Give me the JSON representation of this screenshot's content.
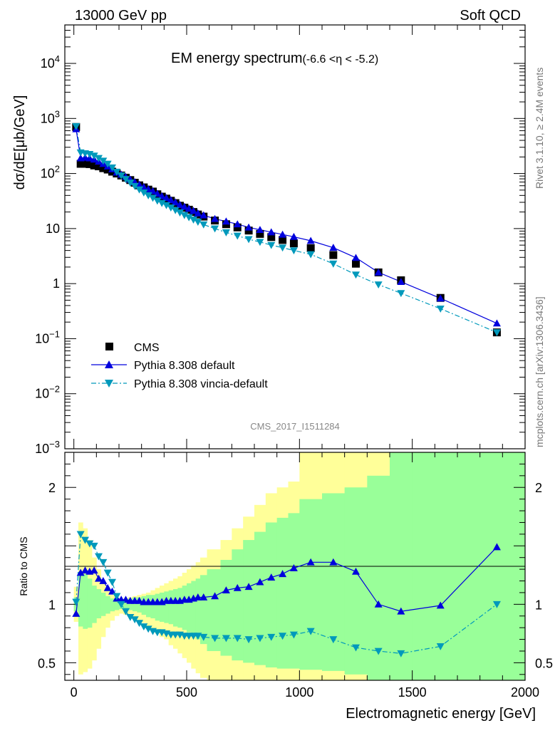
{
  "header": {
    "left": "13000 GeV pp",
    "right": "Soft QCD"
  },
  "side_text": {
    "rivet": "Rivet 3.1.10, ≥ 2.4M events",
    "mcplots": "mcplots.cern.ch [arXiv:1306.3436]"
  },
  "chart_data": {
    "type": "scatter",
    "title": "EM energy spectrum",
    "title_suffix": "(-6.6 <η < -5.2)",
    "watermark": "CMS_2017_I1511284",
    "xlabel": "Electromagnetic energy [GeV]",
    "ylabel": "dσ/dE[μb/GeV]",
    "ratio_ylabel": "Ratio to CMS",
    "xlim": [
      -40,
      2000
    ],
    "ylim": [
      0.001,
      50000
    ],
    "log_y": true,
    "ratio_ylim": [
      0.35,
      2.3
    ],
    "legend_position": "bottom-left",
    "x_ticks": [
      "0",
      "500",
      "1000",
      "1500",
      "2000"
    ],
    "y_tick_labels": [
      {
        "mant": "10",
        "exp": "4",
        "value": 10000
      },
      {
        "mant": "10",
        "exp": "3",
        "value": 1000
      },
      {
        "mant": "10",
        "exp": "2",
        "value": 100
      },
      {
        "mant": "10",
        "exp": "",
        "value": 10
      },
      {
        "mant": "1",
        "exp": "",
        "value": 1
      },
      {
        "mant": "10",
        "exp": "−1",
        "value": 0.1
      },
      {
        "mant": "10",
        "exp": "−2",
        "value": 0.01
      },
      {
        "mant": "10",
        "exp": "−3",
        "value": 0.001
      }
    ],
    "ratio_ticks": [
      {
        "label": "2",
        "value": 2
      },
      {
        "label": "1",
        "value": 1
      },
      {
        "label": "0.5",
        "value": 0.5
      }
    ],
    "x": [
      10,
      30,
      50,
      70,
      90,
      110,
      130,
      150,
      170,
      190,
      210,
      230,
      250,
      270,
      290,
      310,
      330,
      350,
      370,
      390,
      410,
      430,
      450,
      470,
      490,
      510,
      530,
      550,
      575,
      625,
      675,
      725,
      775,
      825,
      875,
      925,
      975,
      1050,
      1150,
      1250,
      1350,
      1450,
      1625,
      1875
    ],
    "series": [
      {
        "name": "CMS",
        "marker": "square",
        "color": "#000000",
        "values": [
          700,
          150,
          150,
          148,
          140,
          135,
          125,
          118,
          108,
          100,
          92,
          84,
          76,
          68,
          61,
          56,
          51,
          47,
          42,
          38,
          35,
          32,
          29,
          26,
          24,
          22,
          20,
          18,
          16.5,
          14,
          12,
          10.5,
          9.2,
          8,
          7,
          6.2,
          5.4,
          4.4,
          3.3,
          2.3,
          1.6,
          1.15,
          0.55,
          0.13
        ]
      },
      {
        "name": "Pythia 8.308 default",
        "marker": "triangle-up",
        "color": "#0000dd",
        "line": "solid",
        "values": [
          640,
          190,
          195,
          190,
          180,
          165,
          150,
          135,
          120,
          105,
          96,
          87,
          78,
          70,
          63,
          57,
          52,
          48,
          43,
          39,
          36,
          33,
          30,
          27,
          25,
          23,
          21,
          19,
          17.5,
          15,
          13.5,
          12,
          10.5,
          9.5,
          8.6,
          7.8,
          7.1,
          6,
          4.5,
          2.95,
          1.6,
          1.08,
          0.54,
          0.19
        ]
      },
      {
        "name": "Pythia 8.308 vincia-default",
        "marker": "triangle-down",
        "color": "#0099bb",
        "line": "dashdot",
        "values": [
          720,
          240,
          232,
          225,
          210,
          190,
          170,
          150,
          128,
          107,
          92,
          79,
          68,
          59,
          51,
          45,
          40,
          36,
          32,
          29,
          26.5,
          24,
          21.5,
          19.5,
          17.5,
          16,
          14.5,
          13.2,
          11.8,
          10,
          8.5,
          7.4,
          6.4,
          5.7,
          5,
          4.5,
          4,
          3.4,
          2.3,
          1.45,
          0.96,
          0.67,
          0.35,
          0.13
        ]
      }
    ],
    "ratio_series": [
      {
        "name": "Pythia 8.308 default",
        "values": [
          0.92,
          1.27,
          1.29,
          1.28,
          1.29,
          1.22,
          1.2,
          1.14,
          1.11,
          1.05,
          1.04,
          1.04,
          1.03,
          1.03,
          1.03,
          1.02,
          1.02,
          1.02,
          1.02,
          1.02,
          1.03,
          1.03,
          1.03,
          1.03,
          1.04,
          1.04,
          1.05,
          1.06,
          1.06,
          1.07,
          1.12,
          1.14,
          1.15,
          1.19,
          1.23,
          1.26,
          1.31,
          1.36,
          1.36,
          1.28,
          1.0,
          0.94,
          0.99,
          1.49
        ]
      },
      {
        "name": "Pythia 8.308 vincia-default",
        "values": [
          1.02,
          1.6,
          1.55,
          1.52,
          1.5,
          1.41,
          1.36,
          1.27,
          1.19,
          1.07,
          1.0,
          0.94,
          0.89,
          0.87,
          0.84,
          0.81,
          0.79,
          0.77,
          0.76,
          0.76,
          0.75,
          0.74,
          0.74,
          0.74,
          0.73,
          0.73,
          0.73,
          0.73,
          0.72,
          0.71,
          0.71,
          0.71,
          0.7,
          0.71,
          0.72,
          0.73,
          0.74,
          0.77,
          0.7,
          0.63,
          0.6,
          0.58,
          0.64,
          1.0
        ]
      }
    ],
    "bands": {
      "yellow_color": "#ffff99",
      "green_color": "#99ff99",
      "edges": [
        0,
        20,
        40,
        60,
        80,
        100,
        120,
        140,
        160,
        180,
        200,
        220,
        240,
        260,
        280,
        300,
        320,
        340,
        360,
        380,
        400,
        420,
        440,
        460,
        480,
        500,
        520,
        540,
        560,
        590,
        650,
        700,
        750,
        800,
        850,
        900,
        950,
        1000,
        1100,
        1200,
        1300,
        1400,
        1500,
        1750,
        2000
      ],
      "yellow_upper": [
        1.15,
        1.7,
        1.65,
        1.55,
        1.4,
        1.3,
        1.2,
        1.13,
        1.08,
        1.05,
        1.04,
        1.05,
        1.06,
        1.07,
        1.08,
        1.09,
        1.1,
        1.12,
        1.14,
        1.16,
        1.18,
        1.2,
        1.22,
        1.24,
        1.27,
        1.3,
        1.33,
        1.36,
        1.4,
        1.47,
        1.55,
        1.65,
        1.75,
        1.85,
        1.95,
        2.0,
        2.05,
        2.3,
        2.3,
        2.3,
        2.3,
        2.3,
        2.3,
        2.3
      ],
      "yellow_lower": [
        0.85,
        0.4,
        0.42,
        0.45,
        0.52,
        0.62,
        0.72,
        0.8,
        0.86,
        0.9,
        0.92,
        0.91,
        0.9,
        0.88,
        0.86,
        0.84,
        0.8,
        0.77,
        0.75,
        0.72,
        0.7,
        0.65,
        0.62,
        0.58,
        0.54,
        0.5,
        0.45,
        0.41,
        0.37,
        0.35,
        0.35,
        0.35,
        0.35,
        0.35,
        0.35,
        0.35,
        0.35,
        0.35,
        0.35,
        0.35,
        0.35,
        0.35,
        0.35,
        0.35
      ],
      "green_upper": [
        1.06,
        1.28,
        1.26,
        1.22,
        1.16,
        1.13,
        1.1,
        1.07,
        1.05,
        1.04,
        1.03,
        1.04,
        1.05,
        1.06,
        1.06,
        1.07,
        1.08,
        1.08,
        1.09,
        1.1,
        1.11,
        1.12,
        1.13,
        1.14,
        1.16,
        1.18,
        1.2,
        1.22,
        1.25,
        1.3,
        1.38,
        1.47,
        1.55,
        1.62,
        1.7,
        1.74,
        1.78,
        1.9,
        1.95,
        2.0,
        2.1,
        2.3,
        2.3,
        2.3
      ],
      "green_lower": [
        0.94,
        0.81,
        0.79,
        0.8,
        0.84,
        0.88,
        0.9,
        0.92,
        0.94,
        0.95,
        0.96,
        0.96,
        0.95,
        0.94,
        0.93,
        0.91,
        0.89,
        0.88,
        0.86,
        0.85,
        0.84,
        0.83,
        0.81,
        0.8,
        0.78,
        0.76,
        0.73,
        0.7,
        0.66,
        0.6,
        0.56,
        0.52,
        0.5,
        0.48,
        0.46,
        0.45,
        0.45,
        0.44,
        0.43,
        0.4,
        0.35,
        0.35,
        0.35,
        0.35
      ]
    }
  }
}
